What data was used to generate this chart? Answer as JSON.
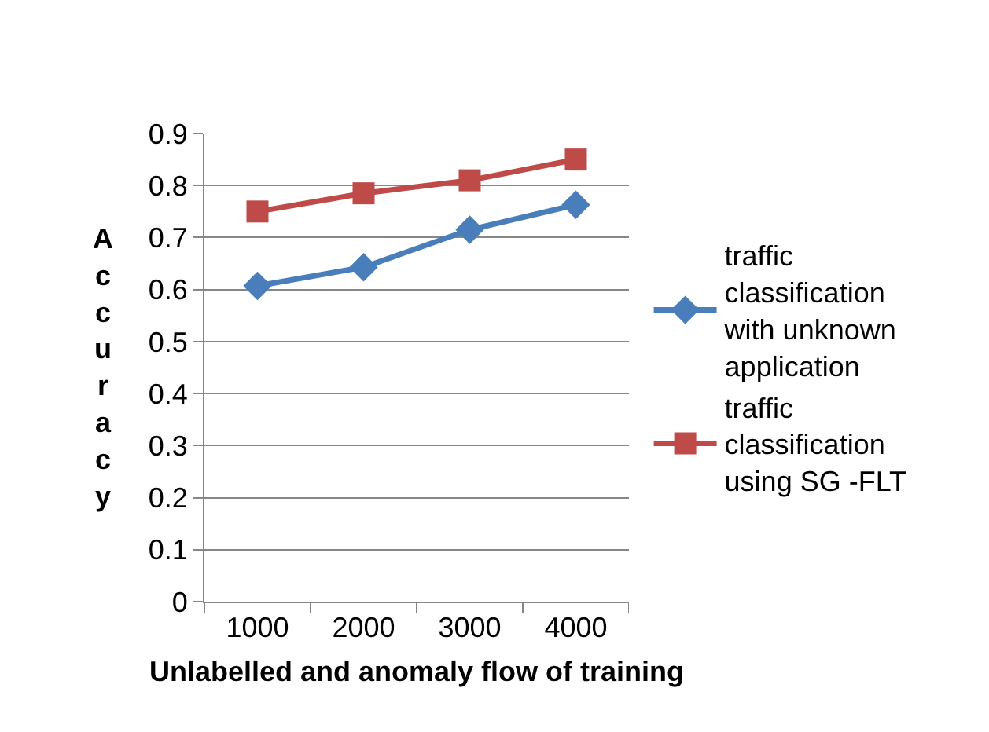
{
  "chart_data": {
    "type": "line",
    "xlabel": "Unlabelled and anomaly flow of training",
    "ylabel": "Accuracy",
    "categories": [
      "1000",
      "2000",
      "3000",
      "4000"
    ],
    "series": [
      {
        "name": "traffic classification with unknown application",
        "color": "#4a7ebb",
        "marker": "diamond",
        "values": [
          0.607,
          0.643,
          0.715,
          0.763
        ]
      },
      {
        "name": "traffic classification using SG -FLT",
        "color": "#be4b48",
        "marker": "square",
        "values": [
          0.75,
          0.785,
          0.81,
          0.85
        ]
      }
    ],
    "ylim": [
      0,
      0.9
    ],
    "yticks": [
      {
        "value": 0,
        "label": "0"
      },
      0.1,
      0.2,
      0.3,
      0.4,
      0.5,
      0.6,
      0.7,
      0.8,
      0.9
    ],
    "grid": "y",
    "legend": "right"
  }
}
